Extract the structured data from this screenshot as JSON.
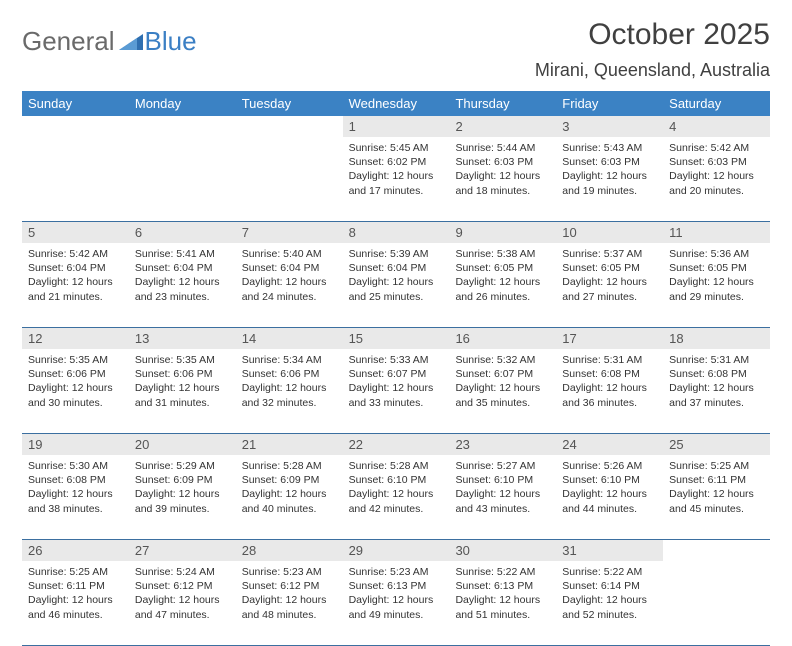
{
  "logo": {
    "text1": "General",
    "text2": "Blue"
  },
  "title": "October 2025",
  "location": "Mirani, Queensland, Australia",
  "colors": {
    "header_bg": "#3b82c4",
    "header_text": "#ffffff",
    "daynum_bg": "#e9e9e9",
    "week_border": "#3b6fa0",
    "body_text": "#333333"
  },
  "day_headers": [
    "Sunday",
    "Monday",
    "Tuesday",
    "Wednesday",
    "Thursday",
    "Friday",
    "Saturday"
  ],
  "weeks": [
    {
      "nums": [
        "",
        "",
        "",
        "1",
        "2",
        "3",
        "4"
      ],
      "cells": [
        null,
        null,
        null,
        {
          "sunrise": "Sunrise: 5:45 AM",
          "sunset": "Sunset: 6:02 PM",
          "d1": "Daylight: 12 hours",
          "d2": "and 17 minutes."
        },
        {
          "sunrise": "Sunrise: 5:44 AM",
          "sunset": "Sunset: 6:03 PM",
          "d1": "Daylight: 12 hours",
          "d2": "and 18 minutes."
        },
        {
          "sunrise": "Sunrise: 5:43 AM",
          "sunset": "Sunset: 6:03 PM",
          "d1": "Daylight: 12 hours",
          "d2": "and 19 minutes."
        },
        {
          "sunrise": "Sunrise: 5:42 AM",
          "sunset": "Sunset: 6:03 PM",
          "d1": "Daylight: 12 hours",
          "d2": "and 20 minutes."
        }
      ]
    },
    {
      "nums": [
        "5",
        "6",
        "7",
        "8",
        "9",
        "10",
        "11"
      ],
      "cells": [
        {
          "sunrise": "Sunrise: 5:42 AM",
          "sunset": "Sunset: 6:04 PM",
          "d1": "Daylight: 12 hours",
          "d2": "and 21 minutes."
        },
        {
          "sunrise": "Sunrise: 5:41 AM",
          "sunset": "Sunset: 6:04 PM",
          "d1": "Daylight: 12 hours",
          "d2": "and 23 minutes."
        },
        {
          "sunrise": "Sunrise: 5:40 AM",
          "sunset": "Sunset: 6:04 PM",
          "d1": "Daylight: 12 hours",
          "d2": "and 24 minutes."
        },
        {
          "sunrise": "Sunrise: 5:39 AM",
          "sunset": "Sunset: 6:04 PM",
          "d1": "Daylight: 12 hours",
          "d2": "and 25 minutes."
        },
        {
          "sunrise": "Sunrise: 5:38 AM",
          "sunset": "Sunset: 6:05 PM",
          "d1": "Daylight: 12 hours",
          "d2": "and 26 minutes."
        },
        {
          "sunrise": "Sunrise: 5:37 AM",
          "sunset": "Sunset: 6:05 PM",
          "d1": "Daylight: 12 hours",
          "d2": "and 27 minutes."
        },
        {
          "sunrise": "Sunrise: 5:36 AM",
          "sunset": "Sunset: 6:05 PM",
          "d1": "Daylight: 12 hours",
          "d2": "and 29 minutes."
        }
      ]
    },
    {
      "nums": [
        "12",
        "13",
        "14",
        "15",
        "16",
        "17",
        "18"
      ],
      "cells": [
        {
          "sunrise": "Sunrise: 5:35 AM",
          "sunset": "Sunset: 6:06 PM",
          "d1": "Daylight: 12 hours",
          "d2": "and 30 minutes."
        },
        {
          "sunrise": "Sunrise: 5:35 AM",
          "sunset": "Sunset: 6:06 PM",
          "d1": "Daylight: 12 hours",
          "d2": "and 31 minutes."
        },
        {
          "sunrise": "Sunrise: 5:34 AM",
          "sunset": "Sunset: 6:06 PM",
          "d1": "Daylight: 12 hours",
          "d2": "and 32 minutes."
        },
        {
          "sunrise": "Sunrise: 5:33 AM",
          "sunset": "Sunset: 6:07 PM",
          "d1": "Daylight: 12 hours",
          "d2": "and 33 minutes."
        },
        {
          "sunrise": "Sunrise: 5:32 AM",
          "sunset": "Sunset: 6:07 PM",
          "d1": "Daylight: 12 hours",
          "d2": "and 35 minutes."
        },
        {
          "sunrise": "Sunrise: 5:31 AM",
          "sunset": "Sunset: 6:08 PM",
          "d1": "Daylight: 12 hours",
          "d2": "and 36 minutes."
        },
        {
          "sunrise": "Sunrise: 5:31 AM",
          "sunset": "Sunset: 6:08 PM",
          "d1": "Daylight: 12 hours",
          "d2": "and 37 minutes."
        }
      ]
    },
    {
      "nums": [
        "19",
        "20",
        "21",
        "22",
        "23",
        "24",
        "25"
      ],
      "cells": [
        {
          "sunrise": "Sunrise: 5:30 AM",
          "sunset": "Sunset: 6:08 PM",
          "d1": "Daylight: 12 hours",
          "d2": "and 38 minutes."
        },
        {
          "sunrise": "Sunrise: 5:29 AM",
          "sunset": "Sunset: 6:09 PM",
          "d1": "Daylight: 12 hours",
          "d2": "and 39 minutes."
        },
        {
          "sunrise": "Sunrise: 5:28 AM",
          "sunset": "Sunset: 6:09 PM",
          "d1": "Daylight: 12 hours",
          "d2": "and 40 minutes."
        },
        {
          "sunrise": "Sunrise: 5:28 AM",
          "sunset": "Sunset: 6:10 PM",
          "d1": "Daylight: 12 hours",
          "d2": "and 42 minutes."
        },
        {
          "sunrise": "Sunrise: 5:27 AM",
          "sunset": "Sunset: 6:10 PM",
          "d1": "Daylight: 12 hours",
          "d2": "and 43 minutes."
        },
        {
          "sunrise": "Sunrise: 5:26 AM",
          "sunset": "Sunset: 6:10 PM",
          "d1": "Daylight: 12 hours",
          "d2": "and 44 minutes."
        },
        {
          "sunrise": "Sunrise: 5:25 AM",
          "sunset": "Sunset: 6:11 PM",
          "d1": "Daylight: 12 hours",
          "d2": "and 45 minutes."
        }
      ]
    },
    {
      "nums": [
        "26",
        "27",
        "28",
        "29",
        "30",
        "31",
        ""
      ],
      "cells": [
        {
          "sunrise": "Sunrise: 5:25 AM",
          "sunset": "Sunset: 6:11 PM",
          "d1": "Daylight: 12 hours",
          "d2": "and 46 minutes."
        },
        {
          "sunrise": "Sunrise: 5:24 AM",
          "sunset": "Sunset: 6:12 PM",
          "d1": "Daylight: 12 hours",
          "d2": "and 47 minutes."
        },
        {
          "sunrise": "Sunrise: 5:23 AM",
          "sunset": "Sunset: 6:12 PM",
          "d1": "Daylight: 12 hours",
          "d2": "and 48 minutes."
        },
        {
          "sunrise": "Sunrise: 5:23 AM",
          "sunset": "Sunset: 6:13 PM",
          "d1": "Daylight: 12 hours",
          "d2": "and 49 minutes."
        },
        {
          "sunrise": "Sunrise: 5:22 AM",
          "sunset": "Sunset: 6:13 PM",
          "d1": "Daylight: 12 hours",
          "d2": "and 51 minutes."
        },
        {
          "sunrise": "Sunrise: 5:22 AM",
          "sunset": "Sunset: 6:14 PM",
          "d1": "Daylight: 12 hours",
          "d2": "and 52 minutes."
        },
        null
      ]
    }
  ]
}
